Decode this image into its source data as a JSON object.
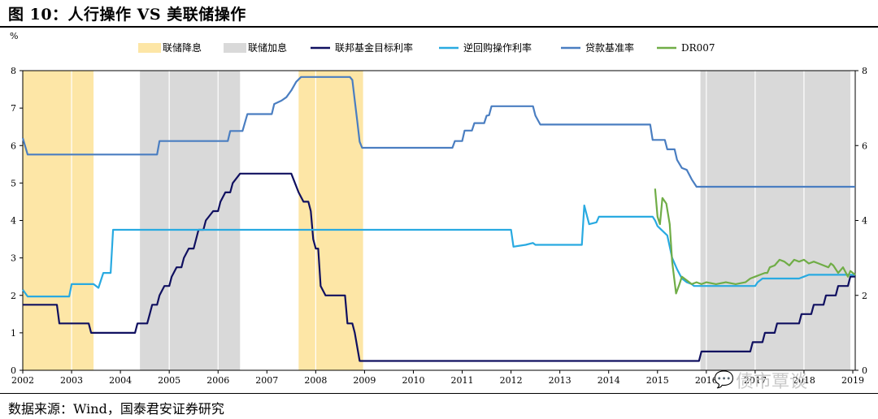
{
  "title": "图 10：人行操作 VS 美联储操作",
  "source": "数据来源：Wind，国泰君安证券研究",
  "watermark": "债市覃谈",
  "watermark_icon": "wechat-icon",
  "chart_data": {
    "type": "line",
    "ylabel": "%",
    "ylim": [
      0,
      8
    ],
    "y2lim": [
      0,
      8
    ],
    "yticks": [
      "0",
      "1",
      "2",
      "3",
      "4",
      "5",
      "6",
      "7",
      "8"
    ],
    "y2ticks": [
      "0",
      "2",
      "4",
      "6",
      "8"
    ],
    "xlim": [
      2002,
      2019.05
    ],
    "xticks": [
      "2002",
      "2003",
      "2004",
      "2005",
      "2006",
      "2007",
      "2008",
      "2009",
      "2010",
      "2011",
      "2012",
      "2013",
      "2014",
      "2015",
      "2016",
      "2017",
      "2018",
      "2019"
    ],
    "grid": true,
    "legend_position": "top",
    "bands": [
      {
        "name": "联储降息",
        "color": "#fde6a6",
        "ranges": [
          [
            2002.0,
            2003.45
          ],
          [
            2007.65,
            2008.97
          ]
        ]
      },
      {
        "name": "联储加息",
        "color": "#d9d9d9",
        "ranges": [
          [
            2004.4,
            2006.45
          ],
          [
            2015.88,
            2018.95
          ]
        ]
      }
    ],
    "series": [
      {
        "name": "联邦基金目标利率",
        "color": "#101060",
        "points": [
          [
            2002.0,
            1.75
          ],
          [
            2002.7,
            1.75
          ],
          [
            2002.75,
            1.25
          ],
          [
            2003.35,
            1.25
          ],
          [
            2003.4,
            1.0
          ],
          [
            2004.3,
            1.0
          ],
          [
            2004.35,
            1.25
          ],
          [
            2004.55,
            1.25
          ],
          [
            2004.6,
            1.5
          ],
          [
            2004.65,
            1.75
          ],
          [
            2004.75,
            1.75
          ],
          [
            2004.8,
            2.0
          ],
          [
            2004.9,
            2.25
          ],
          [
            2005.0,
            2.25
          ],
          [
            2005.05,
            2.5
          ],
          [
            2005.15,
            2.75
          ],
          [
            2005.25,
            2.75
          ],
          [
            2005.3,
            3.0
          ],
          [
            2005.4,
            3.25
          ],
          [
            2005.5,
            3.25
          ],
          [
            2005.55,
            3.5
          ],
          [
            2005.6,
            3.75
          ],
          [
            2005.7,
            3.75
          ],
          [
            2005.75,
            4.0
          ],
          [
            2005.9,
            4.25
          ],
          [
            2006.0,
            4.25
          ],
          [
            2006.05,
            4.5
          ],
          [
            2006.15,
            4.75
          ],
          [
            2006.25,
            4.75
          ],
          [
            2006.3,
            5.0
          ],
          [
            2006.45,
            5.25
          ],
          [
            2007.5,
            5.25
          ],
          [
            2007.65,
            4.75
          ],
          [
            2007.75,
            4.5
          ],
          [
            2007.85,
            4.5
          ],
          [
            2007.9,
            4.25
          ],
          [
            2007.95,
            3.5
          ],
          [
            2008.0,
            3.25
          ],
          [
            2008.05,
            3.25
          ],
          [
            2008.1,
            2.25
          ],
          [
            2008.2,
            2.0
          ],
          [
            2008.6,
            2.0
          ],
          [
            2008.65,
            1.25
          ],
          [
            2008.75,
            1.25
          ],
          [
            2008.8,
            1.0
          ],
          [
            2008.9,
            0.25
          ],
          [
            2015.85,
            0.25
          ],
          [
            2015.9,
            0.5
          ],
          [
            2016.9,
            0.5
          ],
          [
            2016.95,
            0.75
          ],
          [
            2017.15,
            0.75
          ],
          [
            2017.2,
            1.0
          ],
          [
            2017.4,
            1.0
          ],
          [
            2017.45,
            1.25
          ],
          [
            2017.9,
            1.25
          ],
          [
            2017.95,
            1.5
          ],
          [
            2018.15,
            1.5
          ],
          [
            2018.2,
            1.75
          ],
          [
            2018.4,
            1.75
          ],
          [
            2018.45,
            2.0
          ],
          [
            2018.65,
            2.0
          ],
          [
            2018.7,
            2.25
          ],
          [
            2018.9,
            2.25
          ],
          [
            2018.95,
            2.5
          ],
          [
            2019.05,
            2.5
          ]
        ]
      },
      {
        "name": "逆回购操作利率",
        "color": "#29aae1",
        "points": [
          [
            2002.0,
            2.15
          ],
          [
            2002.1,
            1.97
          ],
          [
            2002.95,
            1.97
          ],
          [
            2003.0,
            2.3
          ],
          [
            2003.45,
            2.3
          ],
          [
            2003.55,
            2.2
          ],
          [
            2003.65,
            2.6
          ],
          [
            2003.8,
            2.6
          ],
          [
            2003.85,
            3.75
          ],
          [
            2012.0,
            3.75
          ],
          [
            2012.05,
            3.3
          ],
          [
            2012.3,
            3.35
          ],
          [
            2012.45,
            3.4
          ],
          [
            2012.5,
            3.35
          ],
          [
            2013.45,
            3.35
          ],
          [
            2013.5,
            4.4
          ],
          [
            2013.6,
            3.9
          ],
          [
            2013.75,
            3.95
          ],
          [
            2013.8,
            4.1
          ],
          [
            2014.9,
            4.1
          ],
          [
            2014.95,
            4.0
          ],
          [
            2015.0,
            3.85
          ],
          [
            2015.2,
            3.6
          ],
          [
            2015.3,
            3.0
          ],
          [
            2015.4,
            2.7
          ],
          [
            2015.5,
            2.45
          ],
          [
            2015.6,
            2.35
          ],
          [
            2015.7,
            2.3
          ],
          [
            2015.75,
            2.25
          ],
          [
            2017.0,
            2.25
          ],
          [
            2017.05,
            2.35
          ],
          [
            2017.15,
            2.45
          ],
          [
            2017.9,
            2.45
          ],
          [
            2018.0,
            2.5
          ],
          [
            2018.1,
            2.55
          ],
          [
            2019.05,
            2.55
          ]
        ]
      },
      {
        "name": "贷款基准率",
        "color": "#4a7ec1",
        "points": [
          [
            2002.0,
            6.2
          ],
          [
            2002.1,
            5.76
          ],
          [
            2004.75,
            5.76
          ],
          [
            2004.8,
            6.12
          ],
          [
            2006.2,
            6.12
          ],
          [
            2006.25,
            6.39
          ],
          [
            2006.5,
            6.39
          ],
          [
            2006.6,
            6.84
          ],
          [
            2007.1,
            6.84
          ],
          [
            2007.15,
            7.11
          ],
          [
            2007.3,
            7.2
          ],
          [
            2007.4,
            7.29
          ],
          [
            2007.5,
            7.47
          ],
          [
            2007.6,
            7.7
          ],
          [
            2007.7,
            7.83
          ],
          [
            2008.7,
            7.83
          ],
          [
            2008.75,
            7.75
          ],
          [
            2008.8,
            7.2
          ],
          [
            2008.85,
            6.66
          ],
          [
            2008.9,
            6.1
          ],
          [
            2008.95,
            5.94
          ],
          [
            2010.8,
            5.94
          ],
          [
            2010.85,
            6.12
          ],
          [
            2011.0,
            6.12
          ],
          [
            2011.05,
            6.4
          ],
          [
            2011.2,
            6.4
          ],
          [
            2011.25,
            6.6
          ],
          [
            2011.45,
            6.6
          ],
          [
            2011.5,
            6.8
          ],
          [
            2011.55,
            6.81
          ],
          [
            2011.6,
            7.05
          ],
          [
            2012.45,
            7.05
          ],
          [
            2012.5,
            6.8
          ],
          [
            2012.6,
            6.56
          ],
          [
            2014.85,
            6.56
          ],
          [
            2014.9,
            6.15
          ],
          [
            2015.15,
            6.15
          ],
          [
            2015.2,
            5.9
          ],
          [
            2015.35,
            5.9
          ],
          [
            2015.4,
            5.62
          ],
          [
            2015.5,
            5.4
          ],
          [
            2015.6,
            5.35
          ],
          [
            2015.7,
            5.1
          ],
          [
            2015.8,
            4.9
          ],
          [
            2019.05,
            4.9
          ]
        ]
      },
      {
        "name": "DR007",
        "color": "#70ad47",
        "points": [
          [
            2014.95,
            4.85
          ],
          [
            2015.0,
            4.1
          ],
          [
            2015.05,
            3.9
          ],
          [
            2015.1,
            4.6
          ],
          [
            2015.18,
            4.45
          ],
          [
            2015.25,
            3.9
          ],
          [
            2015.3,
            2.9
          ],
          [
            2015.38,
            2.05
          ],
          [
            2015.45,
            2.3
          ],
          [
            2015.5,
            2.5
          ],
          [
            2015.6,
            2.4
          ],
          [
            2015.7,
            2.3
          ],
          [
            2015.8,
            2.35
          ],
          [
            2015.9,
            2.3
          ],
          [
            2016.0,
            2.35
          ],
          [
            2016.2,
            2.3
          ],
          [
            2016.4,
            2.35
          ],
          [
            2016.6,
            2.3
          ],
          [
            2016.8,
            2.35
          ],
          [
            2016.9,
            2.45
          ],
          [
            2017.0,
            2.5
          ],
          [
            2017.1,
            2.55
          ],
          [
            2017.2,
            2.6
          ],
          [
            2017.25,
            2.6
          ],
          [
            2017.3,
            2.75
          ],
          [
            2017.4,
            2.8
          ],
          [
            2017.5,
            2.95
          ],
          [
            2017.6,
            2.9
          ],
          [
            2017.7,
            2.8
          ],
          [
            2017.8,
            2.95
          ],
          [
            2017.9,
            2.9
          ],
          [
            2018.0,
            2.95
          ],
          [
            2018.1,
            2.85
          ],
          [
            2018.2,
            2.9
          ],
          [
            2018.3,
            2.85
          ],
          [
            2018.4,
            2.8
          ],
          [
            2018.5,
            2.75
          ],
          [
            2018.55,
            2.85
          ],
          [
            2018.6,
            2.8
          ],
          [
            2018.7,
            2.6
          ],
          [
            2018.8,
            2.75
          ],
          [
            2018.9,
            2.5
          ],
          [
            2018.95,
            2.65
          ],
          [
            2019.0,
            2.6
          ],
          [
            2019.05,
            2.55
          ]
        ]
      }
    ]
  }
}
